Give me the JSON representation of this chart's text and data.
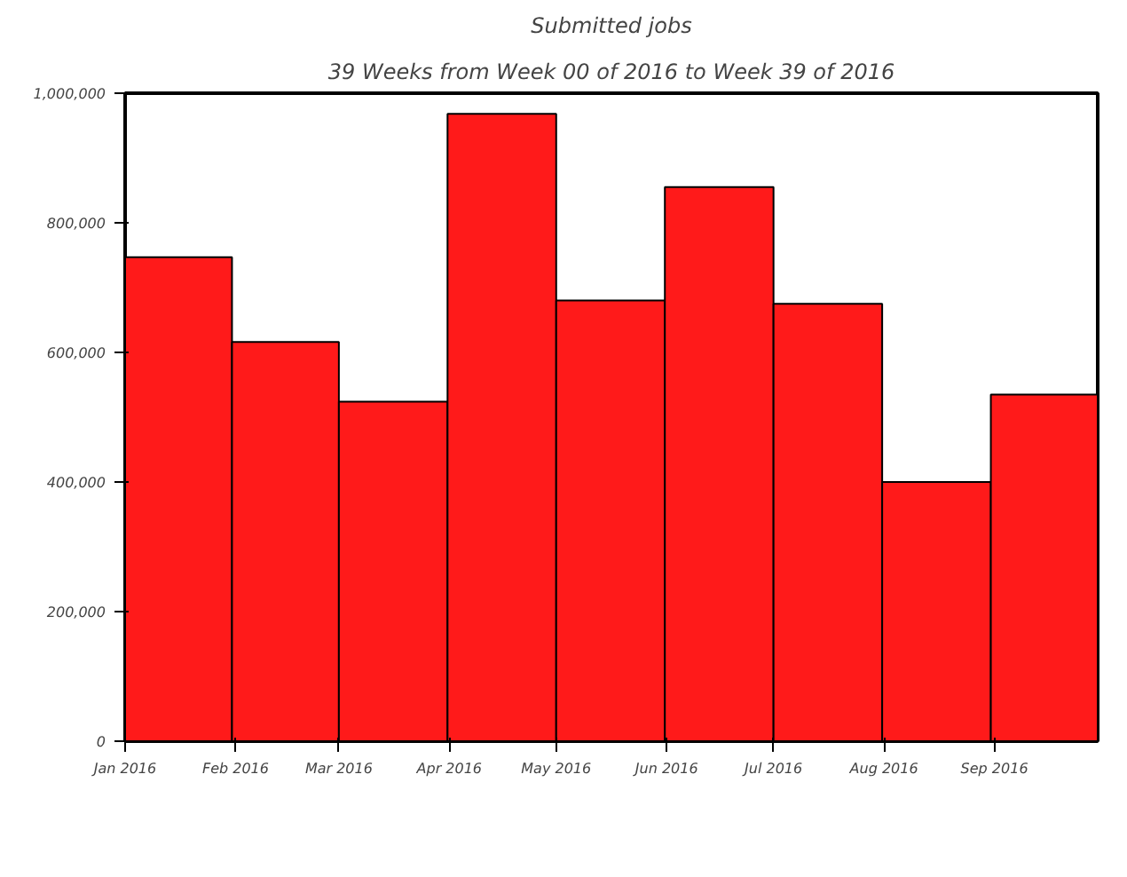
{
  "chart_data": {
    "type": "bar",
    "title": "Submitted jobs",
    "subtitle": "39 Weeks from Week 00 of 2016 to Week 39 of 2016",
    "x": [
      "2016-01-16",
      "2016-02-15",
      "2016-03-16",
      "2016-04-16",
      "2016-05-16",
      "2016-06-16",
      "2016-07-16",
      "2016-08-16",
      "2016-09-15"
    ],
    "values": [
      747000,
      616000,
      524000,
      968000,
      680000,
      855000,
      675000,
      400000,
      535000
    ],
    "color": "#ff1a1a",
    "xlim": [
      "2016-01-01",
      "2016-09-30"
    ],
    "xticks": [
      {
        "value": "2016-01-01",
        "label": "Jan 2016"
      },
      {
        "value": "2016-02-01",
        "label": "Feb 2016"
      },
      {
        "value": "2016-03-01",
        "label": "Mar 2016"
      },
      {
        "value": "2016-04-01",
        "label": "Apr 2016"
      },
      {
        "value": "2016-05-01",
        "label": "May 2016"
      },
      {
        "value": "2016-06-01",
        "label": "Jun 2016"
      },
      {
        "value": "2016-07-01",
        "label": "Jul 2016"
      },
      {
        "value": "2016-08-01",
        "label": "Aug 2016"
      },
      {
        "value": "2016-09-01",
        "label": "Sep 2016"
      }
    ],
    "ylim": [
      0,
      1000000
    ],
    "yticks": [
      0,
      {
        "value": 200000,
        "label": "200,000"
      },
      {
        "value": 400000,
        "label": "400,000"
      },
      {
        "value": 600000,
        "label": "600,000"
      },
      {
        "value": 800000,
        "label": "800,000"
      },
      {
        "value": 1000000,
        "label": "1,000,000"
      }
    ],
    "grid": false
  }
}
